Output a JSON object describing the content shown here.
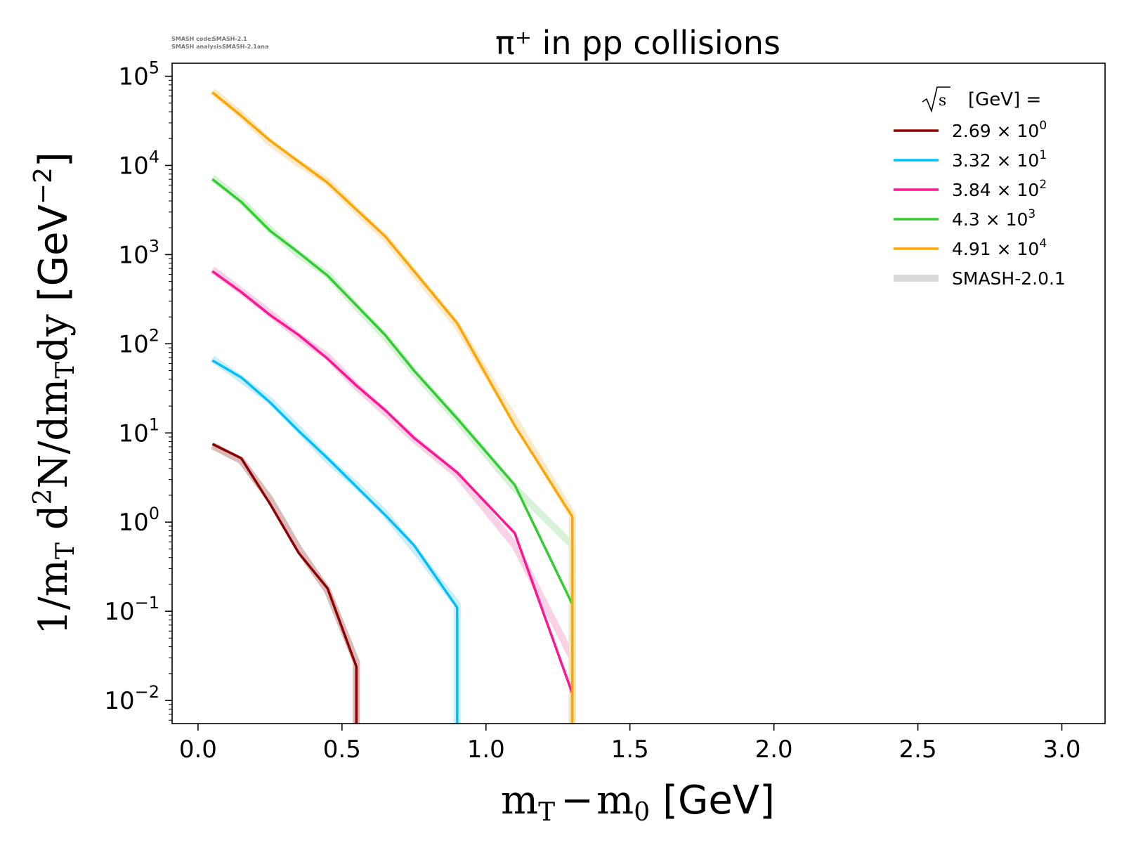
{
  "chart_data": {
    "type": "line",
    "title": "π⁺ in pp collisions",
    "xlabel": "m_T − m_0 [GeV]",
    "xlabel_parts": {
      "m1": "m",
      "sub1": "T",
      "minus": "−",
      "m2": "m",
      "sub2": "0",
      "unit": "[GeV]"
    },
    "ylabel": "1/m_T d²N/dm_Tdy [GeV⁻²]",
    "ylabel_parts": {
      "a": "1/m",
      "sub1": "T",
      "b": " d",
      "sup1": "2",
      "c": "N/dm",
      "sub2": "T",
      "d": "dy",
      "unit": "[GeV",
      "sup2": "−2",
      "close": "]"
    },
    "xlim": [
      -0.09,
      3.15
    ],
    "ylim": [
      0.0055,
      140000
    ],
    "yscale": "log",
    "x_ticks": [
      {
        "value": 0.0,
        "label": "0.0"
      },
      {
        "value": 0.5,
        "label": "0.5"
      },
      {
        "value": 1.0,
        "label": "1.0"
      },
      {
        "value": 1.5,
        "label": "1.5"
      },
      {
        "value": 2.0,
        "label": "2.0"
      },
      {
        "value": 2.5,
        "label": "2.5"
      },
      {
        "value": 3.0,
        "label": "3.0"
      }
    ],
    "y_ticks": [
      {
        "value": 0.01,
        "base": "10",
        "exp": "−2"
      },
      {
        "value": 0.1,
        "base": "10",
        "exp": "−1"
      },
      {
        "value": 1,
        "base": "10",
        "exp": "0"
      },
      {
        "value": 10,
        "base": "10",
        "exp": "1"
      },
      {
        "value": 100,
        "base": "10",
        "exp": "2"
      },
      {
        "value": 1000,
        "base": "10",
        "exp": "3"
      },
      {
        "value": 10000,
        "base": "10",
        "exp": "4"
      },
      {
        "value": 100000,
        "base": "10",
        "exp": "5"
      }
    ],
    "legend": {
      "title": "√s [GeV] =",
      "title_sqrt": "s",
      "title_rest": "[GeV] =",
      "placement": "top-right",
      "reference_label": "SMASH-2.0.1",
      "reference_color": "#d9d9d9"
    },
    "series": [
      {
        "name": "2.69 × 10^0",
        "mantissa": "2.69 × 10",
        "exp": "0",
        "color": "#8b0000",
        "band": "#cfa3a3",
        "x": [
          0.05,
          0.15,
          0.25,
          0.35,
          0.45,
          0.55,
          0.55
        ],
        "y": [
          7.5,
          5.2,
          1.6,
          0.45,
          0.18,
          0.024,
          0.0055
        ],
        "ref_y": [
          7.2,
          4.9,
          1.8,
          0.5,
          0.17,
          0.027,
          0.0055
        ]
      },
      {
        "name": "3.32 × 10^1",
        "mantissa": "3.32 × 10",
        "exp": "1",
        "color": "#00bfff",
        "band": "#b8e8fb",
        "x": [
          0.05,
          0.15,
          0.25,
          0.35,
          0.45,
          0.55,
          0.65,
          0.75,
          0.9,
          0.9
        ],
        "y": [
          65,
          42,
          22,
          10.5,
          5.2,
          2.5,
          1.2,
          0.55,
          0.11,
          0.0055
        ],
        "ref_y": [
          68,
          40,
          23,
          11,
          5.0,
          2.6,
          1.25,
          0.5,
          0.12,
          0.0055
        ]
      },
      {
        "name": "3.84 × 10^2",
        "mantissa": "3.84 × 10",
        "exp": "2",
        "color": "#ff1493",
        "band": "#f9c2dd",
        "x": [
          0.05,
          0.15,
          0.25,
          0.35,
          0.45,
          0.55,
          0.65,
          0.75,
          0.9,
          1.1,
          1.3,
          1.3
        ],
        "y": [
          650,
          380,
          210,
          125,
          68,
          34,
          18,
          8.8,
          3.6,
          0.75,
          0.012,
          0.0055
        ],
        "ref_y": [
          680,
          390,
          220,
          120,
          72,
          33,
          17,
          8.5,
          3.4,
          0.55,
          0.03,
          0.0055
        ]
      },
      {
        "name": "4.3 × 10^3",
        "mantissa": "4.3 × 10",
        "exp": "3",
        "color": "#32cd32",
        "band": "#c8efc8",
        "x": [
          0.05,
          0.15,
          0.25,
          0.35,
          0.45,
          0.55,
          0.65,
          0.75,
          0.9,
          1.1,
          1.3,
          1.3
        ],
        "y": [
          7000,
          3900,
          1850,
          1050,
          580,
          270,
          125,
          50,
          14.5,
          2.6,
          0.12,
          0.0055
        ],
        "ref_y": [
          7300,
          4000,
          1900,
          1000,
          600,
          260,
          120,
          48,
          14,
          2.4,
          0.55,
          0.0055
        ]
      },
      {
        "name": "4.91 × 10^4",
        "mantissa": "4.91 × 10",
        "exp": "4",
        "color": "#ffa500",
        "band": "#fde3b8",
        "x": [
          0.05,
          0.15,
          0.25,
          0.35,
          0.45,
          0.55,
          0.65,
          0.9,
          1.1,
          1.3,
          1.3
        ],
        "y": [
          66000,
          36000,
          19000,
          11000,
          6400,
          3200,
          1600,
          170,
          12,
          1.15,
          0.0055
        ],
        "ref_y": [
          68000,
          37000,
          18000,
          10500,
          6600,
          3100,
          1550,
          160,
          14,
          1.2,
          0.0055
        ]
      }
    ]
  },
  "watermark": {
    "line1_label": "SMASH code:",
    "line1_value": "SMASH-2.1",
    "line2_label": "SMASH analysis:",
    "line2_value": "SMASH-2.1ana"
  }
}
